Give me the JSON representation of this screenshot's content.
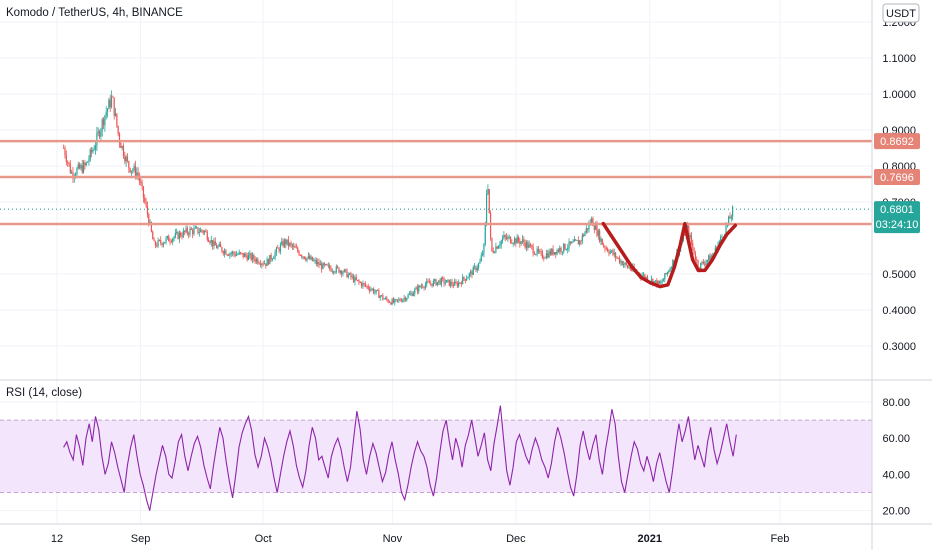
{
  "header": {
    "title": "Komodo / TetherUS, 4h, BINANCE",
    "currency_button": "USDT"
  },
  "colors": {
    "up": "#26a69a",
    "down": "#ef5350",
    "level_line": "#e8978b",
    "level_badge": "#e58376",
    "price_badge": "#26a69a",
    "rsi_line": "#8e24aa",
    "rsi_band": "#f3e5fb",
    "drawing": "#b71c1c",
    "grid": "#f0f3fa"
  },
  "chart_data": [
    {
      "type": "candlestick",
      "x_ticks": [
        "12",
        "Sep",
        "Oct",
        "Nov",
        "Dec",
        "2021",
        "Feb"
      ],
      "y_ticks": [
        "1.2000",
        "1.1000",
        "1.0000",
        "0.9000",
        "0.8000",
        "0.7000",
        "0.5000",
        "0.4000",
        "0.3000"
      ],
      "ylim": [
        0.26,
        1.22
      ],
      "horizontal_levels": [
        {
          "value": 0.8692,
          "label": "0.8692"
        },
        {
          "value": 0.7696,
          "label": "0.7696"
        },
        {
          "value": 0.639,
          "label": "0.6390"
        }
      ],
      "last_price": {
        "value": 0.6801,
        "label": "0.6801",
        "countdown": "03:24:10"
      },
      "price_path": [
        [
          0.7,
          0.85
        ],
        [
          1.5,
          0.78
        ],
        [
          3,
          0.8
        ],
        [
          4,
          0.86
        ],
        [
          5,
          0.94
        ],
        [
          5.8,
          0.99
        ],
        [
          6.5,
          0.88
        ],
        [
          7.5,
          0.8
        ],
        [
          8.5,
          0.78
        ],
        [
          9.5,
          0.67
        ],
        [
          10.2,
          0.58
        ],
        [
          12,
          0.6
        ],
        [
          14,
          0.62
        ],
        [
          15.5,
          0.62
        ],
        [
          16.5,
          0.58
        ],
        [
          18,
          0.56
        ],
        [
          20,
          0.55
        ],
        [
          22,
          0.53
        ],
        [
          24,
          0.59
        ],
        [
          26,
          0.55
        ],
        [
          28,
          0.52
        ],
        [
          30,
          0.51
        ],
        [
          31.5,
          0.48
        ],
        [
          33,
          0.46
        ],
        [
          34.5,
          0.43
        ],
        [
          35.5,
          0.42
        ],
        [
          37,
          0.44
        ],
        [
          38.5,
          0.47
        ],
        [
          40.5,
          0.48
        ],
        [
          42,
          0.47
        ],
        [
          43.5,
          0.5
        ],
        [
          44.5,
          0.53
        ],
        [
          45,
          0.58
        ],
        [
          45.3,
          0.78
        ],
        [
          45.7,
          0.56
        ],
        [
          47,
          0.6
        ],
        [
          49,
          0.59
        ],
        [
          51,
          0.55
        ],
        [
          53,
          0.57
        ],
        [
          55,
          0.59
        ],
        [
          56.3,
          0.65
        ],
        [
          57.5,
          0.58
        ],
        [
          60,
          0.52
        ],
        [
          62,
          0.49
        ],
        [
          63.5,
          0.47
        ],
        [
          65.2,
          0.55
        ],
        [
          66.3,
          0.63
        ],
        [
          67.5,
          0.52
        ],
        [
          69,
          0.55
        ],
        [
          70.3,
          0.62
        ],
        [
          71.2,
          0.68
        ]
      ]
    },
    {
      "type": "line",
      "title": "RSI (14, close)",
      "series": [
        {
          "values": [
            55,
            58,
            52,
            48,
            62,
            55,
            45,
            60,
            68,
            58,
            72,
            65,
            50,
            40,
            46,
            58,
            52,
            44,
            37,
            30,
            45,
            55,
            62,
            50,
            40,
            34,
            26,
            20,
            30,
            40,
            48,
            56,
            50,
            40,
            38,
            47,
            58,
            62,
            50,
            42,
            50,
            57,
            61,
            55,
            45,
            38,
            32,
            45,
            56,
            66,
            60,
            47,
            36,
            27,
            40,
            55,
            63,
            68,
            72,
            64,
            51,
            44,
            50,
            60,
            55,
            48,
            38,
            30,
            40,
            50,
            58,
            64,
            56,
            45,
            38,
            33,
            42,
            56,
            66,
            60,
            48,
            50,
            44,
            38,
            50,
            56,
            60,
            54,
            44,
            36,
            44,
            60,
            75,
            65,
            48,
            40,
            50,
            57,
            52,
            44,
            36,
            41,
            51,
            58,
            48,
            40,
            30,
            26,
            34,
            44,
            52,
            58,
            53,
            50,
            44,
            34,
            28,
            38,
            52,
            64,
            70,
            58,
            48,
            60,
            54,
            44,
            56,
            62,
            70,
            60,
            50,
            56,
            63,
            48,
            42,
            57,
            67,
            78,
            60,
            42,
            34,
            44,
            58,
            62,
            56,
            50,
            46,
            54,
            60,
            55,
            48,
            44,
            38,
            46,
            58,
            66,
            60,
            52,
            42,
            33,
            28,
            40,
            56,
            64,
            55,
            48,
            56,
            62,
            48,
            40,
            54,
            64,
            76,
            68,
            50,
            36,
            30,
            40,
            50,
            58,
            54,
            46,
            42,
            50,
            44,
            36,
            46,
            52,
            44,
            36,
            30,
            42,
            56,
            68,
            58,
            64,
            72,
            60,
            48,
            56,
            50,
            44,
            58,
            66,
            54,
            46,
            52,
            60,
            68,
            58,
            50,
            62
          ]
        }
      ],
      "ylim": [
        15,
        85
      ],
      "band": [
        30,
        70
      ],
      "y_ticks": [
        "80.00",
        "60.00",
        "40.00",
        "20.00"
      ]
    }
  ]
}
